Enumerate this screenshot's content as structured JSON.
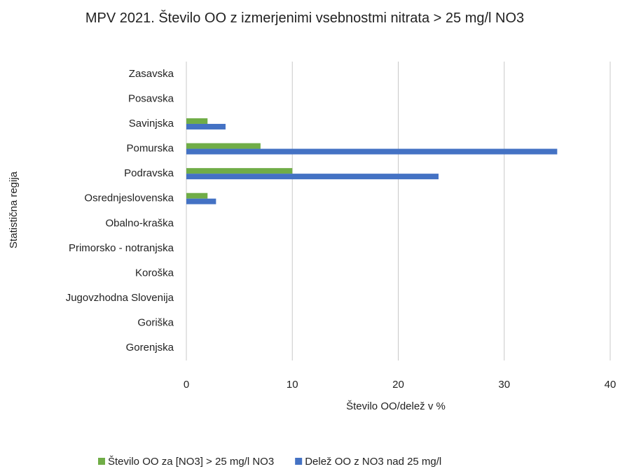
{
  "chart_data": {
    "type": "hbar",
    "title": "MPV 2021. Število OO z izmerjenimi vsebnostmi nitrata > 25 mg/l NO3",
    "x_label": "Število OO/delež  v %",
    "y_label": "Statistična regija",
    "categories": [
      "Zasavska",
      "Posavska",
      "Savinjska",
      "Pomurska",
      "Podravska",
      "Osrednjeslovenska",
      "Obalno-kraška",
      "Primorsko - notranjska",
      "Koroška",
      "Jugovzhodna Slovenija",
      "Goriška",
      "Gorenjska"
    ],
    "series": [
      {
        "name": "Število OO za [NO3] > 25 mg/l NO3",
        "color": "#70ad47",
        "values": [
          0,
          0,
          2,
          7,
          10,
          2,
          0,
          0,
          0,
          0,
          0,
          0
        ]
      },
      {
        "name": "Delež OO z NO3 nad 25 mg/l",
        "color": "#4472c4",
        "values": [
          0,
          0,
          3.7,
          35,
          23.8,
          2.8,
          0,
          0,
          0,
          0,
          0,
          0
        ]
      }
    ],
    "xlim": [
      0,
      40
    ],
    "xticks": [
      0,
      10,
      20,
      30,
      40
    ],
    "grid": true,
    "legend": "bottom"
  }
}
